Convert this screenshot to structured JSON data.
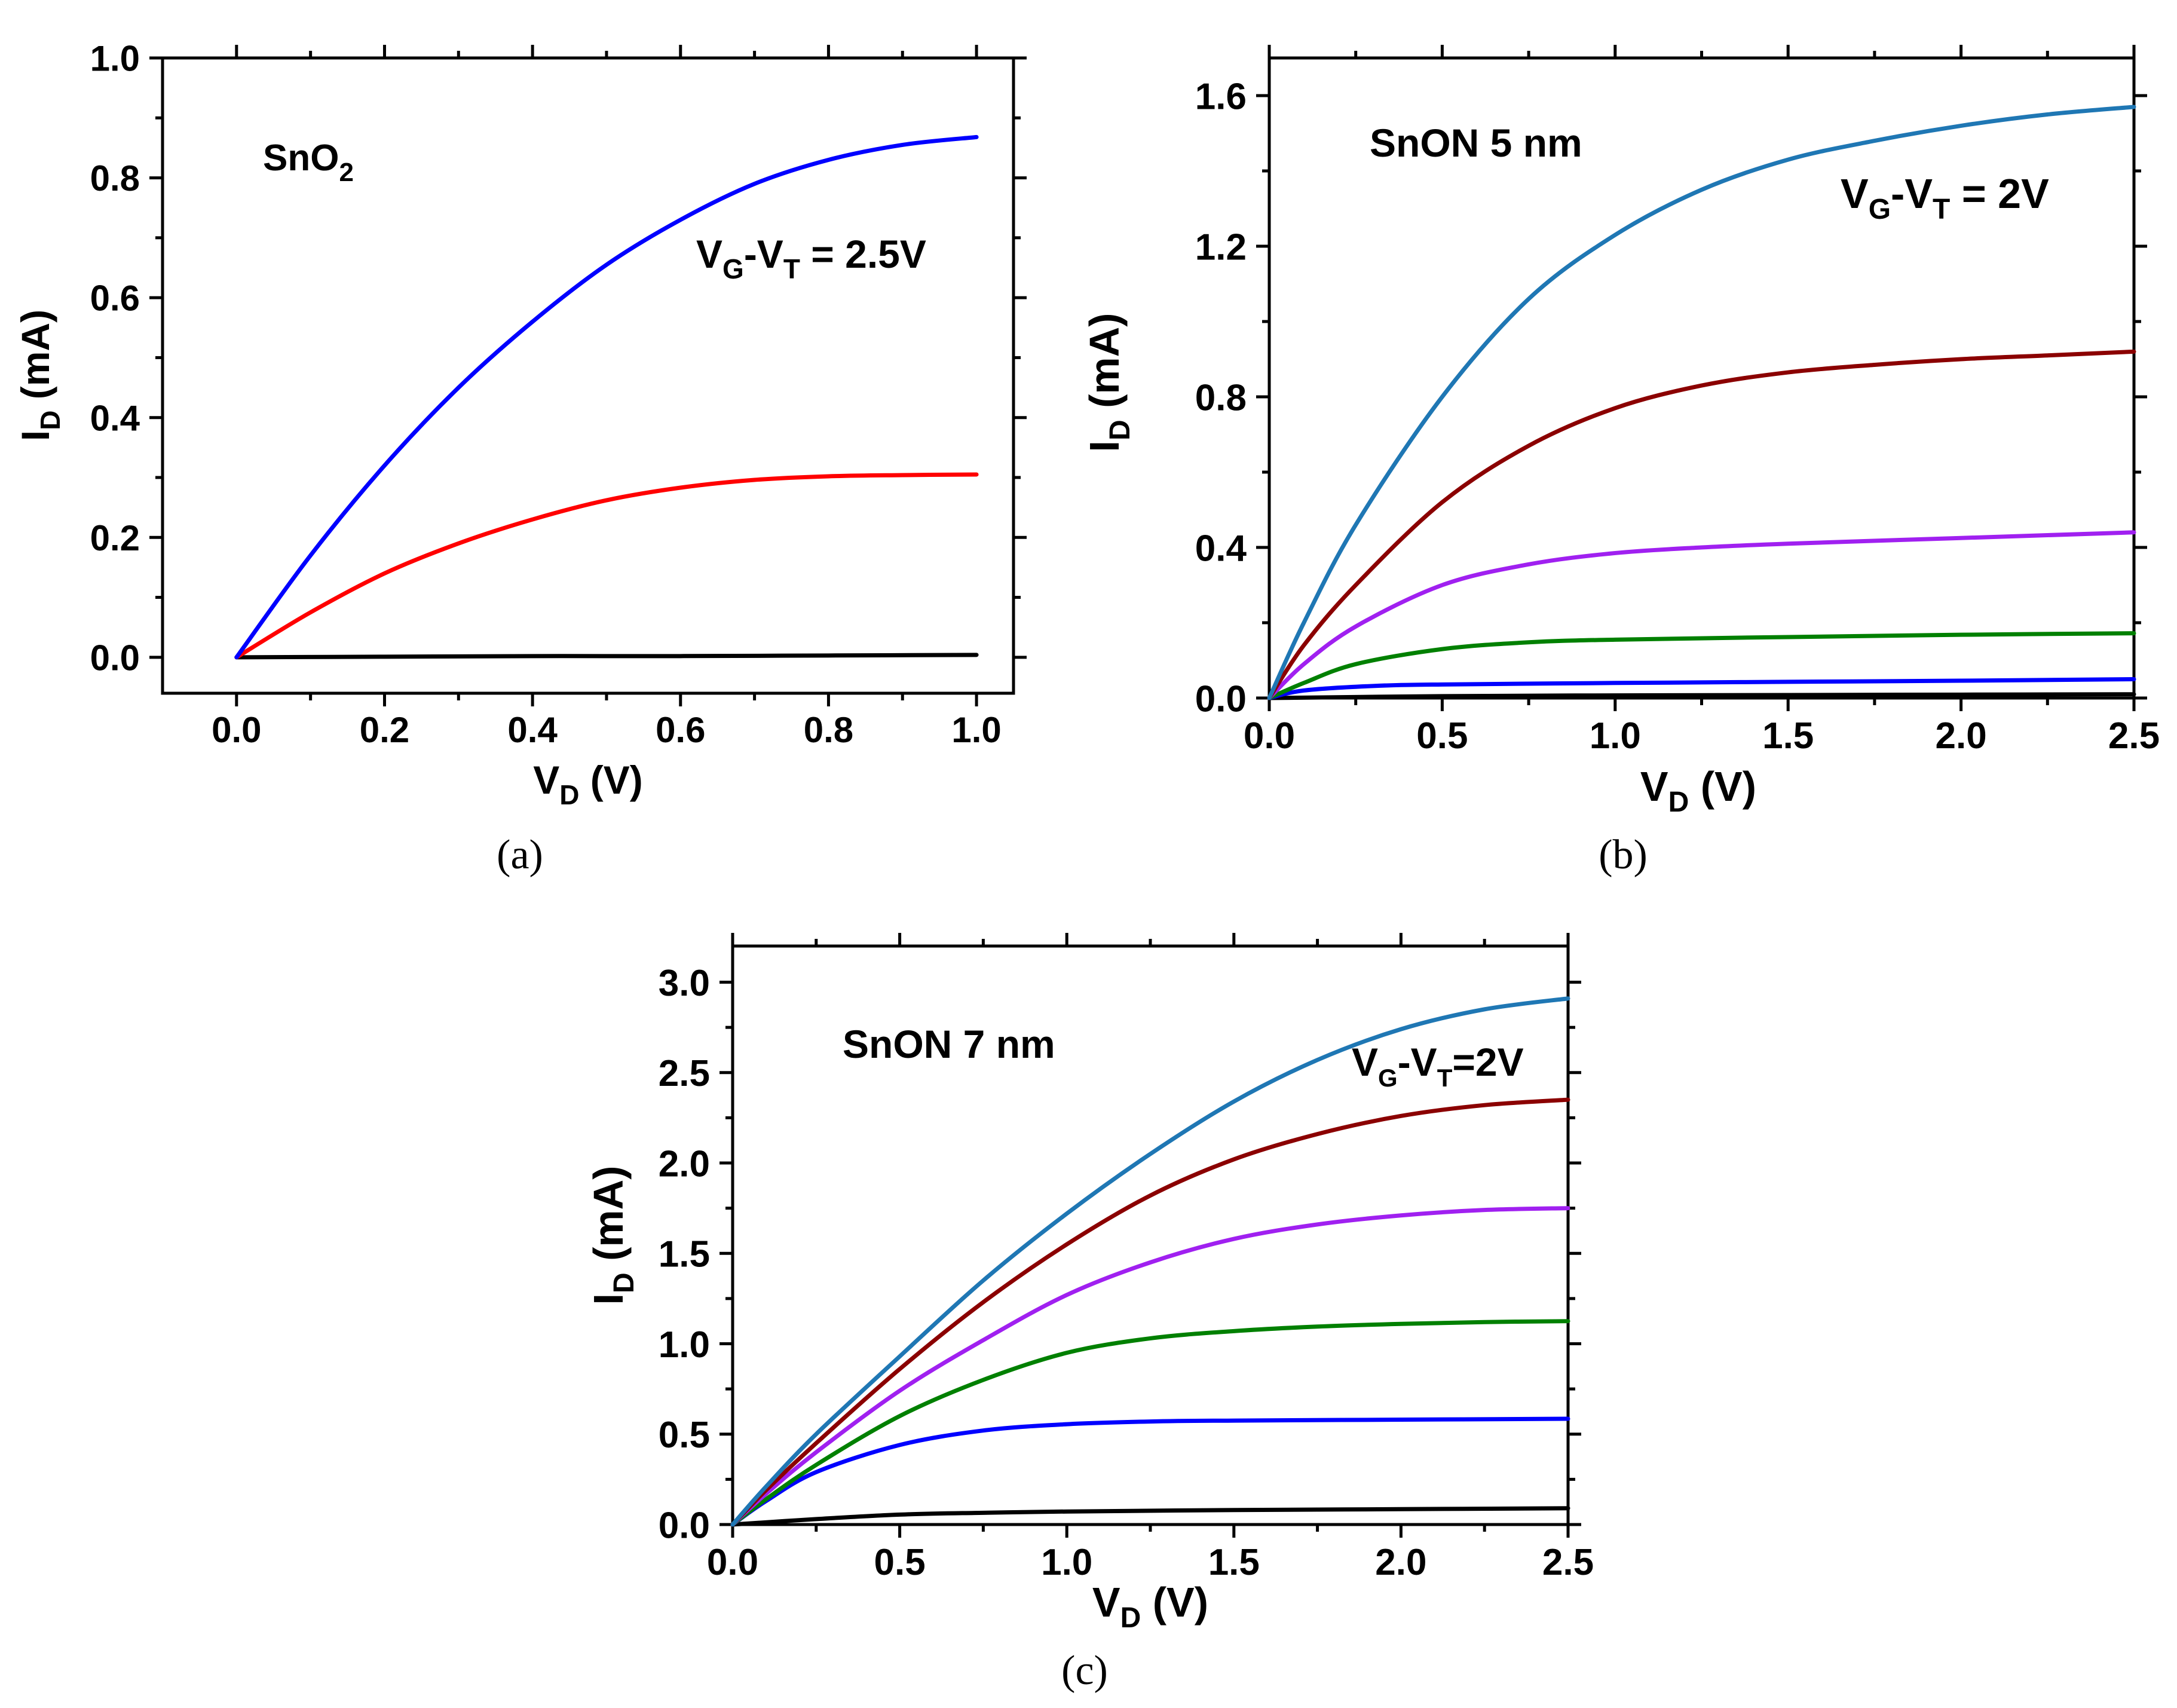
{
  "chart_data": [
    {
      "id": "a",
      "type": "line",
      "caption": "(a)",
      "title": "",
      "annotation": {
        "label_main": "SnO",
        "label_sub": "2"
      },
      "gate_label": {
        "v1": "V",
        "s1": "G",
        "mid": "-V",
        "s2": "T",
        "tail": " = 2.5V"
      },
      "xlabel": {
        "main": "V",
        "sub": "D",
        "tail": " (V)"
      },
      "ylabel": {
        "main": "I",
        "sub": "D",
        "tail": " (mA)"
      },
      "xlim": [
        -0.1,
        1.05
      ],
      "ylim": [
        -0.06,
        1.0
      ],
      "xticks": [
        0.0,
        0.2,
        0.4,
        0.6,
        0.8,
        1.0
      ],
      "xtick_labels": [
        "0.0",
        "0.2",
        "0.4",
        "0.6",
        "0.8",
        "1.0"
      ],
      "yticks": [
        0.0,
        0.2,
        0.4,
        0.6,
        0.8,
        1.0
      ],
      "ytick_labels": [
        "0.0",
        "0.2",
        "0.4",
        "0.6",
        "0.8",
        "1.0"
      ],
      "series": [
        {
          "name": "black",
          "color": "#000000",
          "x": [
            0,
            0.2,
            0.4,
            0.6,
            0.8,
            1.0
          ],
          "values": [
            0,
            0.001,
            0.002,
            0.002,
            0.003,
            0.004
          ]
        },
        {
          "name": "red",
          "color": "#ff0000",
          "x": [
            0,
            0.1,
            0.2,
            0.3,
            0.4,
            0.5,
            0.6,
            0.7,
            0.8,
            0.9,
            1.0
          ],
          "values": [
            0,
            0.075,
            0.14,
            0.19,
            0.23,
            0.262,
            0.283,
            0.296,
            0.302,
            0.304,
            0.305
          ]
        },
        {
          "name": "blue",
          "color": "#0000ff",
          "x": [
            0,
            0.1,
            0.2,
            0.3,
            0.4,
            0.5,
            0.6,
            0.7,
            0.8,
            0.9,
            1.0
          ],
          "values": [
            0,
            0.17,
            0.32,
            0.45,
            0.56,
            0.655,
            0.73,
            0.79,
            0.83,
            0.855,
            0.868
          ]
        }
      ]
    },
    {
      "id": "b",
      "type": "line",
      "caption": "(b)",
      "title": "",
      "annotation": {
        "label_main": "SnON 5 nm",
        "label_sub": ""
      },
      "gate_label": {
        "v1": "V",
        "s1": "G",
        "mid": "-V",
        "s2": "T",
        "tail": " = 2V"
      },
      "xlabel": {
        "main": "V",
        "sub": "D",
        "tail": " (V)"
      },
      "ylabel": {
        "main": "I",
        "sub": "D",
        "tail": " (mA)"
      },
      "xlim": [
        0.0,
        2.5
      ],
      "ylim": [
        0.0,
        1.7
      ],
      "xticks": [
        0.0,
        0.5,
        1.0,
        1.5,
        2.0,
        2.5
      ],
      "xtick_labels": [
        "0.0",
        "0.5",
        "1.0",
        "1.5",
        "2.0",
        "2.5"
      ],
      "yticks": [
        0.0,
        0.4,
        0.8,
        1.2,
        1.6
      ],
      "ytick_labels": [
        "0.0",
        "0.4",
        "0.8",
        "1.2",
        "1.6"
      ],
      "series": [
        {
          "name": "black",
          "color": "#000000",
          "x": [
            0,
            0.5,
            1.0,
            1.5,
            2.0,
            2.5
          ],
          "values": [
            0,
            0.005,
            0.007,
            0.008,
            0.009,
            0.01
          ]
        },
        {
          "name": "blue",
          "color": "#0000ff",
          "x": [
            0,
            0.1,
            0.3,
            0.5,
            1.0,
            1.5,
            2.0,
            2.5
          ],
          "values": [
            0,
            0.02,
            0.032,
            0.036,
            0.04,
            0.043,
            0.046,
            0.05
          ]
        },
        {
          "name": "green",
          "color": "#008000",
          "x": [
            0,
            0.1,
            0.25,
            0.5,
            0.75,
            1.0,
            1.5,
            2.0,
            2.5
          ],
          "values": [
            0,
            0.04,
            0.09,
            0.13,
            0.148,
            0.155,
            0.162,
            0.168,
            0.172
          ]
        },
        {
          "name": "purple",
          "color": "#a020f0",
          "x": [
            0,
            0.1,
            0.25,
            0.5,
            0.75,
            1.0,
            1.25,
            1.5,
            2.0,
            2.5
          ],
          "values": [
            0,
            0.09,
            0.19,
            0.3,
            0.355,
            0.385,
            0.4,
            0.41,
            0.425,
            0.44
          ]
        },
        {
          "name": "darkred",
          "color": "#8b0000",
          "x": [
            0,
            0.1,
            0.25,
            0.5,
            0.75,
            1.0,
            1.25,
            1.5,
            1.75,
            2.0,
            2.25,
            2.5
          ],
          "values": [
            0,
            0.14,
            0.3,
            0.52,
            0.67,
            0.77,
            0.83,
            0.865,
            0.885,
            0.9,
            0.91,
            0.92
          ]
        },
        {
          "name": "steelblue",
          "color": "#1f77b4",
          "x": [
            0,
            0.1,
            0.25,
            0.5,
            0.75,
            1.0,
            1.25,
            1.5,
            1.75,
            2.0,
            2.25,
            2.5
          ],
          "values": [
            0,
            0.2,
            0.46,
            0.8,
            1.06,
            1.23,
            1.35,
            1.43,
            1.48,
            1.52,
            1.55,
            1.57
          ]
        }
      ]
    },
    {
      "id": "c",
      "type": "line",
      "caption": "(c)",
      "title": "",
      "annotation": {
        "label_main": "SnON 7 nm",
        "label_sub": ""
      },
      "gate_label": {
        "v1": "V",
        "s1": "G",
        "mid": "-V",
        "s2": "T",
        "tail": "=2V"
      },
      "xlabel": {
        "main": "V",
        "sub": "D",
        "tail": " (V)"
      },
      "ylabel": {
        "main": "I",
        "sub": "D",
        "tail": " (mA)"
      },
      "xlim": [
        0.0,
        2.5
      ],
      "ylim": [
        0.0,
        3.2
      ],
      "xticks": [
        0.0,
        0.5,
        1.0,
        1.5,
        2.0,
        2.5
      ],
      "xtick_labels": [
        "0.0",
        "0.5",
        "1.0",
        "1.5",
        "2.0",
        "2.5"
      ],
      "yticks": [
        0.0,
        0.5,
        1.0,
        1.5,
        2.0,
        2.5,
        3.0
      ],
      "ytick_labels": [
        "0.0",
        "0.5",
        "1.0",
        "1.5",
        "2.0",
        "2.5",
        "3.0"
      ],
      "series": [
        {
          "name": "black",
          "color": "#000000",
          "x": [
            0,
            0.25,
            0.5,
            0.75,
            1.0,
            1.5,
            2.0,
            2.5
          ],
          "values": [
            0,
            0.03,
            0.055,
            0.065,
            0.072,
            0.08,
            0.085,
            0.09
          ]
        },
        {
          "name": "blue",
          "color": "#0000ff",
          "x": [
            0,
            0.1,
            0.25,
            0.5,
            0.75,
            1.0,
            1.25,
            1.5,
            2.0,
            2.5
          ],
          "values": [
            0,
            0.13,
            0.29,
            0.44,
            0.52,
            0.555,
            0.57,
            0.575,
            0.58,
            0.585
          ]
        },
        {
          "name": "green",
          "color": "#008000",
          "x": [
            0,
            0.1,
            0.25,
            0.5,
            0.75,
            1.0,
            1.25,
            1.5,
            1.75,
            2.0,
            2.25,
            2.5
          ],
          "values": [
            0,
            0.14,
            0.33,
            0.6,
            0.8,
            0.95,
            1.03,
            1.07,
            1.095,
            1.11,
            1.12,
            1.125
          ]
        },
        {
          "name": "purple",
          "color": "#a020f0",
          "x": [
            0,
            0.1,
            0.25,
            0.5,
            0.75,
            1.0,
            1.25,
            1.5,
            1.75,
            2.0,
            2.25,
            2.5
          ],
          "values": [
            0,
            0.17,
            0.4,
            0.74,
            1.02,
            1.27,
            1.45,
            1.58,
            1.66,
            1.71,
            1.74,
            1.75
          ]
        },
        {
          "name": "darkred",
          "color": "#8b0000",
          "x": [
            0,
            0.1,
            0.25,
            0.5,
            0.75,
            1.0,
            1.25,
            1.5,
            1.75,
            2.0,
            2.25,
            2.5
          ],
          "values": [
            0,
            0.19,
            0.45,
            0.86,
            1.23,
            1.55,
            1.82,
            2.02,
            2.16,
            2.26,
            2.32,
            2.35
          ]
        },
        {
          "name": "steelblue",
          "color": "#1f77b4",
          "x": [
            0,
            0.1,
            0.25,
            0.5,
            0.75,
            1.0,
            1.25,
            1.5,
            1.75,
            2.0,
            2.25,
            2.5
          ],
          "values": [
            0,
            0.21,
            0.5,
            0.93,
            1.35,
            1.72,
            2.05,
            2.34,
            2.57,
            2.74,
            2.85,
            2.91
          ]
        }
      ]
    }
  ]
}
